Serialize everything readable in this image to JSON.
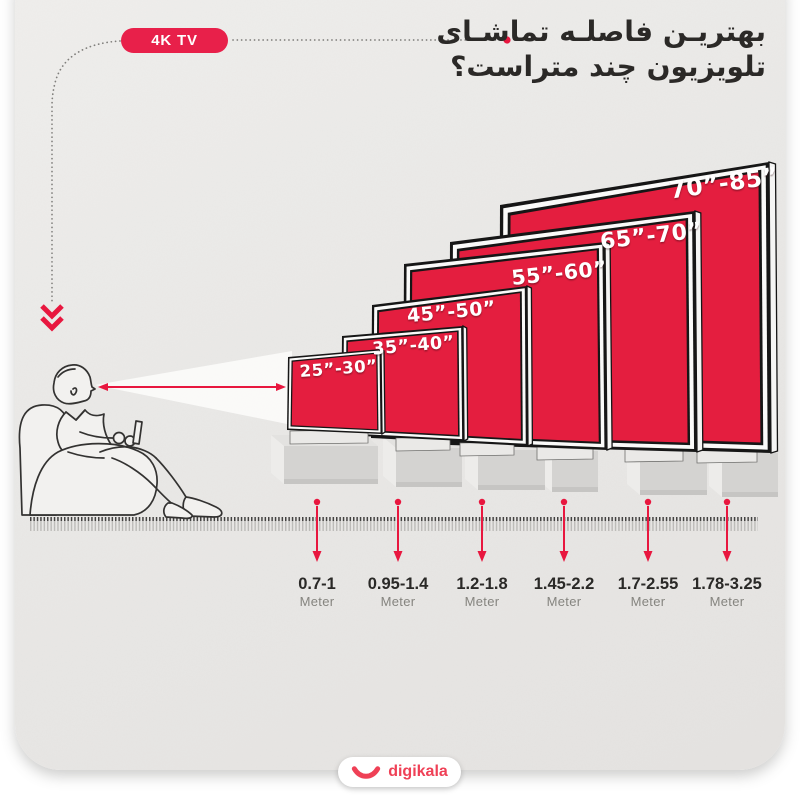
{
  "header": {
    "badge_label": "4K TV",
    "title_line1": "بهتریـن فاصلـه تماشـای",
    "title_line2": "تلویزیون چند متراست؟"
  },
  "scene": {
    "tvs": [
      {
        "size_label": "25”-30”",
        "distance_label": "0.7-1",
        "unit": "Meter"
      },
      {
        "size_label": "35”-40”",
        "distance_label": "0.95-1.4",
        "unit": "Meter"
      },
      {
        "size_label": "45”-50”",
        "distance_label": "1.2-1.8",
        "unit": "Meter"
      },
      {
        "size_label": "55”-60”",
        "distance_label": "1.45-2.2",
        "unit": "Meter"
      },
      {
        "size_label": "65”-70”",
        "distance_label": "1.7-2.55",
        "unit": "Meter"
      },
      {
        "size_label": "70”-85”",
        "distance_label": "1.78-3.25",
        "unit": "Meter"
      }
    ]
  },
  "footer": {
    "brand": "digikala"
  },
  "colors": {
    "accent_red": "#e8173f",
    "screen_red": "#e41e3f",
    "badge_red": "#e8204a",
    "brand_red": "#ef4056",
    "title_color": "#2b2927"
  }
}
